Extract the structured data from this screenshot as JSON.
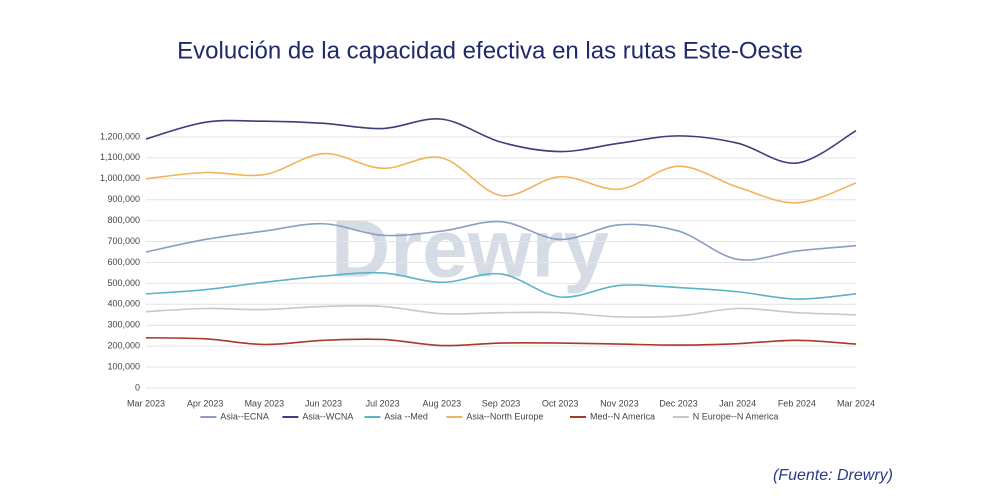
{
  "chart_data": {
    "type": "line",
    "title": "Evolución de la capacidad efectiva en las rutas Este-Oeste",
    "watermark": "Drewry",
    "source": "(Fuente: Drewry)",
    "categories": [
      "Mar 2023",
      "Apr 2023",
      "May 2023",
      "Jun 2023",
      "Jul 2023",
      "Aug 2023",
      "Sep 2023",
      "Oct 2023",
      "Nov 2023",
      "Dec 2023",
      "Jan 2024",
      "Feb 2024",
      "Mar 2024"
    ],
    "ylim": [
      0,
      1300000
    ],
    "yticks": [
      0,
      {
        "value": 100000,
        "label": "100,000"
      },
      {
        "value": 200000,
        "label": "200,000"
      },
      {
        "value": 300000,
        "label": "300,000"
      },
      {
        "value": 400000,
        "label": "400,000"
      },
      {
        "value": 500000,
        "label": "500,000"
      },
      {
        "value": 600000,
        "label": "600,000"
      },
      {
        "value": 700000,
        "label": "700,000"
      },
      {
        "value": 800000,
        "label": "800,000"
      },
      {
        "value": 900000,
        "label": "900,000"
      },
      {
        "value": 1000000,
        "label": "1,000,000"
      },
      {
        "value": 1100000,
        "label": "1,100,000"
      },
      {
        "value": 1200000,
        "label": "1,200,000"
      }
    ],
    "grid": true,
    "legend": "bottom",
    "series": [
      {
        "name": "Asia--ECNA",
        "color": "#8a9fc0",
        "values": [
          650000,
          710000,
          750000,
          785000,
          730000,
          750000,
          795000,
          710000,
          780000,
          750000,
          615000,
          655000,
          680000
        ]
      },
      {
        "name": "Asia--WCNA",
        "color": "#3b3f7a",
        "values": [
          1190000,
          1270000,
          1275000,
          1265000,
          1240000,
          1285000,
          1175000,
          1130000,
          1170000,
          1205000,
          1170000,
          1075000,
          1230000
        ]
      },
      {
        "name": "Asia --Med",
        "color": "#5ab4c8",
        "values": [
          450000,
          470000,
          505000,
          535000,
          550000,
          505000,
          545000,
          435000,
          490000,
          480000,
          460000,
          425000,
          450000
        ]
      },
      {
        "name": "Asia--North Europe",
        "color": "#f2b45a",
        "values": [
          1000000,
          1030000,
          1020000,
          1120000,
          1050000,
          1100000,
          920000,
          1010000,
          950000,
          1060000,
          960000,
          885000,
          980000
        ]
      },
      {
        "name": "Med--N America",
        "color": "#a83a2a",
        "values": [
          240000,
          235000,
          208000,
          228000,
          232000,
          203000,
          215000,
          215000,
          210000,
          205000,
          212000,
          228000,
          210000
        ]
      },
      {
        "name": "N Europe--N America",
        "color": "#c8c8c8",
        "values": [
          365000,
          380000,
          375000,
          390000,
          390000,
          355000,
          360000,
          360000,
          340000,
          345000,
          380000,
          360000,
          350000
        ]
      }
    ]
  }
}
